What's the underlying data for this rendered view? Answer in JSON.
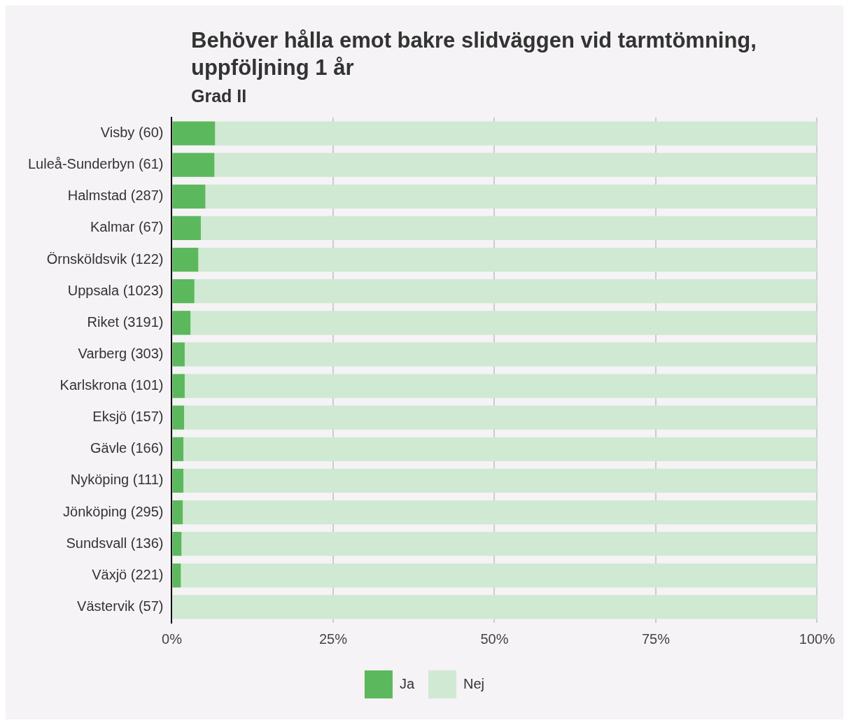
{
  "chart_data": {
    "type": "bar",
    "orientation": "horizontal",
    "stacked": true,
    "title": "Behöver hålla emot bakre slidväggen vid tarmtömning, uppföljning 1 år",
    "subtitle": "Grad II",
    "categories": [
      "Visby (60)",
      "Luleå-Sunderbyn (61)",
      "Halmstad (287)",
      "Kalmar (67)",
      "Örnsköldsvik (122)",
      "Uppsala (1023)",
      "Riket (3191)",
      "Varberg (303)",
      "Karlskrona (101)",
      "Eksjö (157)",
      "Gävle (166)",
      "Nyköping (111)",
      "Jönköping (295)",
      "Sundsvall (136)",
      "Växjö (221)",
      "Västervik (57)"
    ],
    "series": [
      {
        "name": "Ja",
        "color": "#5cb85c",
        "values": [
          6.7,
          6.6,
          5.2,
          4.5,
          4.1,
          3.5,
          2.9,
          2.0,
          2.0,
          1.9,
          1.8,
          1.8,
          1.7,
          1.5,
          1.4,
          0
        ]
      },
      {
        "name": "Nej",
        "color": "#d0e9d2",
        "values": [
          93.3,
          93.4,
          94.8,
          95.5,
          95.9,
          96.5,
          97.1,
          98.0,
          98.0,
          98.1,
          98.2,
          98.2,
          98.3,
          98.5,
          98.6,
          100
        ]
      }
    ],
    "xlim": [
      0,
      100
    ],
    "xticks": [
      {
        "value": 0,
        "label": "0%"
      },
      {
        "value": 25,
        "label": "25%"
      },
      {
        "value": 50,
        "label": "50%"
      },
      {
        "value": 75,
        "label": "75%"
      },
      {
        "value": 100,
        "label": "100%"
      }
    ],
    "grid": "x",
    "legend": "bottom"
  }
}
